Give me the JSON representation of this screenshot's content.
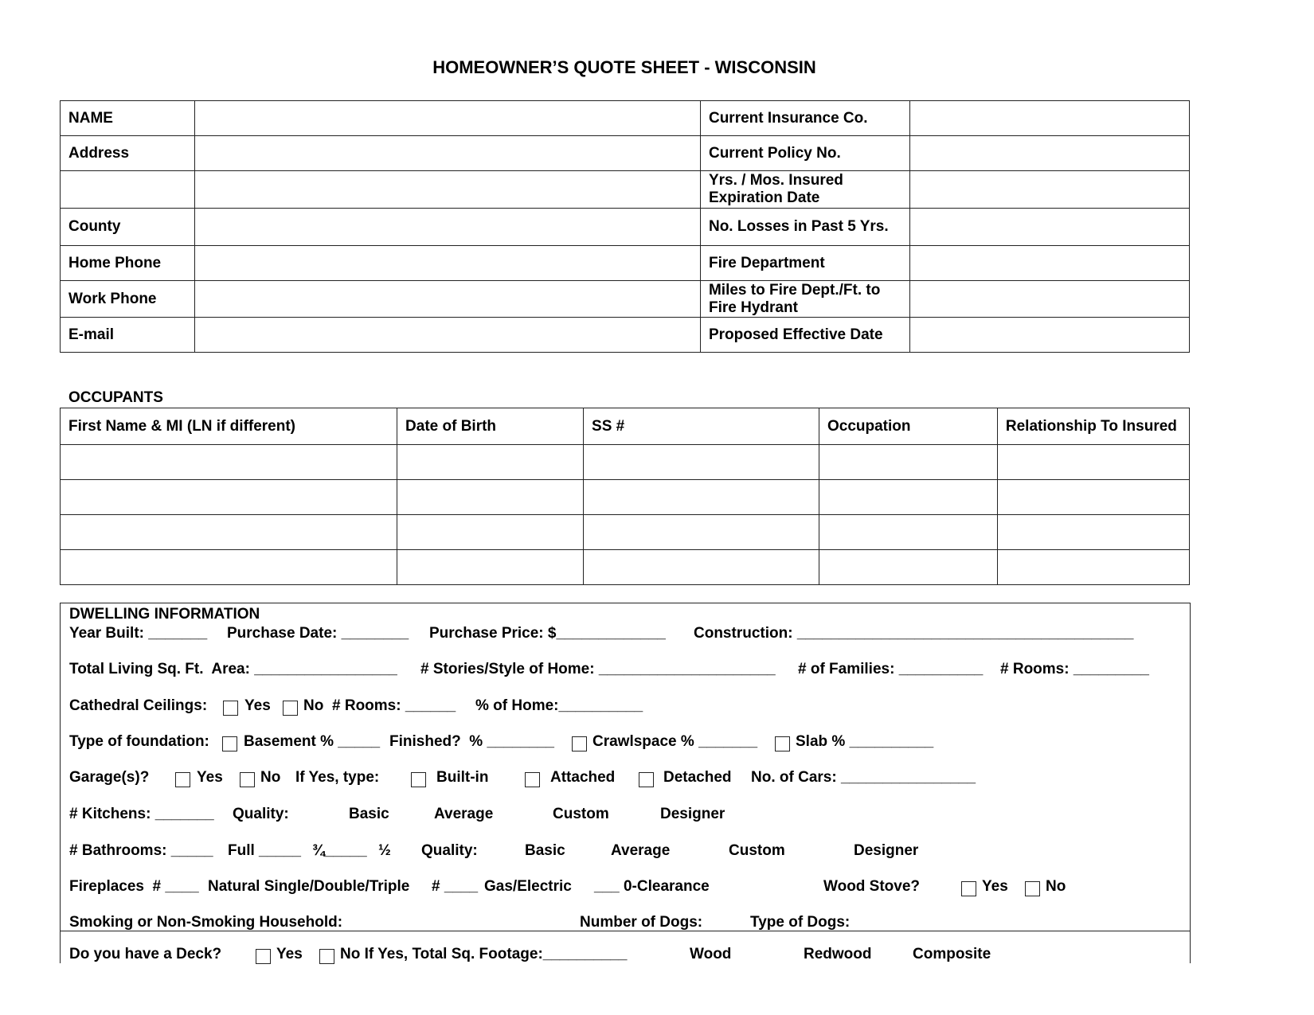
{
  "title": "HOMEOWNER’S QUOTE SHEET - WISCONSIN",
  "applicant": {
    "rows": [
      {
        "left": "NAME",
        "right": "Current Insurance Co."
      },
      {
        "left": "Address",
        "right": "Current Policy No."
      },
      {
        "left": "",
        "right": "Yrs. / Mos. Insured Expiration Date"
      },
      {
        "left": "County",
        "right": "No. Losses in Past 5 Yrs."
      },
      {
        "left": "Home Phone",
        "right": "Fire Department"
      },
      {
        "left": "Work Phone",
        "right": "Miles to Fire Dept./Ft. to Fire Hydrant"
      },
      {
        "left": "E-mail",
        "right": "Proposed Effective Date"
      }
    ]
  },
  "occupants": {
    "label": "OCCUPANTS",
    "headers": [
      "First Name & MI (LN if different)",
      "Date of Birth",
      "SS #",
      "Occupation",
      "Relationship To Insured"
    ]
  },
  "dwelling": {
    "heading": "DWELLING INFORMATION",
    "rows": [
      [
        "Year Built: _______",
        "Purchase Date: ________",
        "Purchase Price: $_____________",
        "Construction: ________________________________________"
      ],
      [
        "Total Living Sq. Ft.  Area: _________________",
        "# Stories/Style of Home: _____________________",
        "# of Families: __________",
        "# Rooms: _________"
      ],
      [
        "Cathedral Ceilings:",
        "Yes",
        "No",
        "# Rooms: ______",
        "% of Home:__________"
      ],
      [
        "Type of foundation:",
        "Basement % _____",
        "Finished?  % ________",
        "Crawlspace % _______",
        "Slab % __________"
      ],
      [
        "Garage(s)?",
        "Yes",
        "No",
        "If Yes, type:",
        "Built-in",
        "Attached",
        "Detached",
        "No. of Cars: ________________"
      ],
      [
        "# Kitchens: _______",
        "Quality:",
        "Basic",
        "Average",
        "Custom",
        "Designer"
      ],
      [
        "# Bathrooms: _____",
        "Full _____",
        "¾_____",
        "½",
        "Quality:",
        "Basic",
        "Average",
        "Custom",
        "Designer"
      ],
      [
        "Fireplaces  # ____",
        "Natural Single/Double/Triple",
        "# ____",
        "Gas/Electric",
        "___ 0-Clearance",
        "Wood Stove?",
        "Yes",
        "No"
      ],
      [
        "Smoking or Non-Smoking Household:",
        "Number of Dogs:",
        "Type of Dogs:"
      ],
      [
        "Do you have a Deck?",
        "Yes",
        "No If Yes, Total Sq. Footage:__________",
        "Wood",
        "Redwood",
        "Composite"
      ]
    ]
  }
}
